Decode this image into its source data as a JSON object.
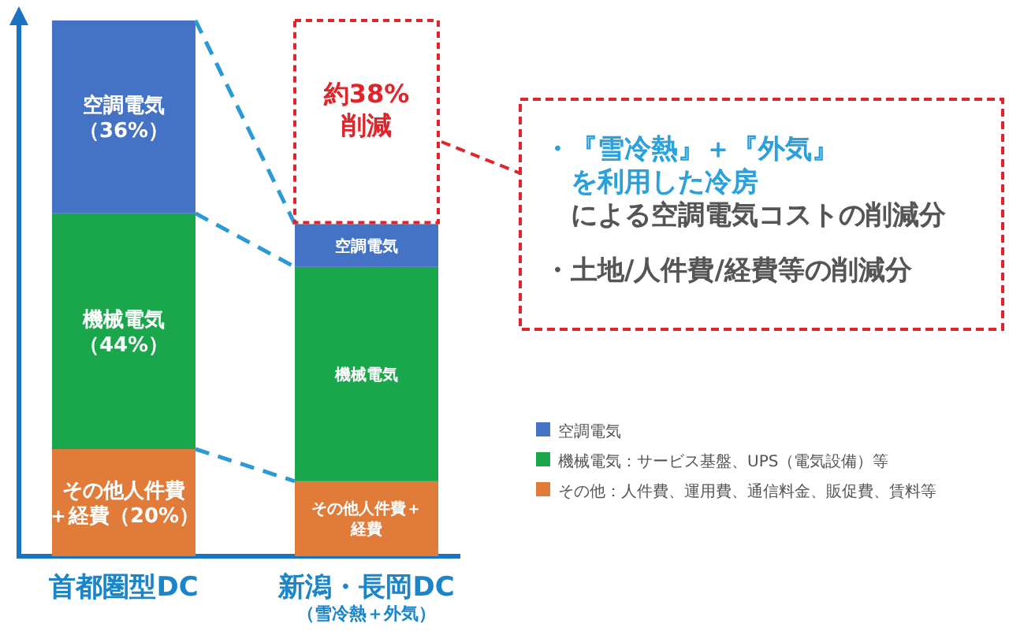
{
  "chart_data": {
    "type": "bar",
    "stacked": true,
    "categories": [
      "首都圏型DC",
      "新潟・長岡DC"
    ],
    "series": [
      {
        "name": "その他：人件費、運用費、通信料金、販促費、賃料等",
        "color": "#e07b39",
        "values": [
          20,
          14
        ],
        "value_labels": [
          "その他人件費＋経費（20%）",
          "その他人件費＋経費"
        ]
      },
      {
        "name": "機械電気：サービス基盤、UPS（電気設備）等",
        "color": "#1aa64a",
        "values": [
          44,
          40
        ],
        "value_labels": [
          "機械電気（44%）",
          "機械電気"
        ]
      },
      {
        "name": "空調電気",
        "color": "#4472c4",
        "values": [
          36,
          8
        ],
        "value_labels": [
          "空調電気（36%）",
          "空調電気"
        ]
      }
    ],
    "ylim": [
      0,
      100
    ],
    "tick_labels": "x",
    "annotations": [
      "約38%削減",
      "・『雪冷熱』＋『外気』を利用した冷房",
      "による空調電気コストの削減分",
      "・土地/人件費/経費等の削減分",
      "（雪冷熱＋外気）"
    ],
    "legend": "right"
  }
}
